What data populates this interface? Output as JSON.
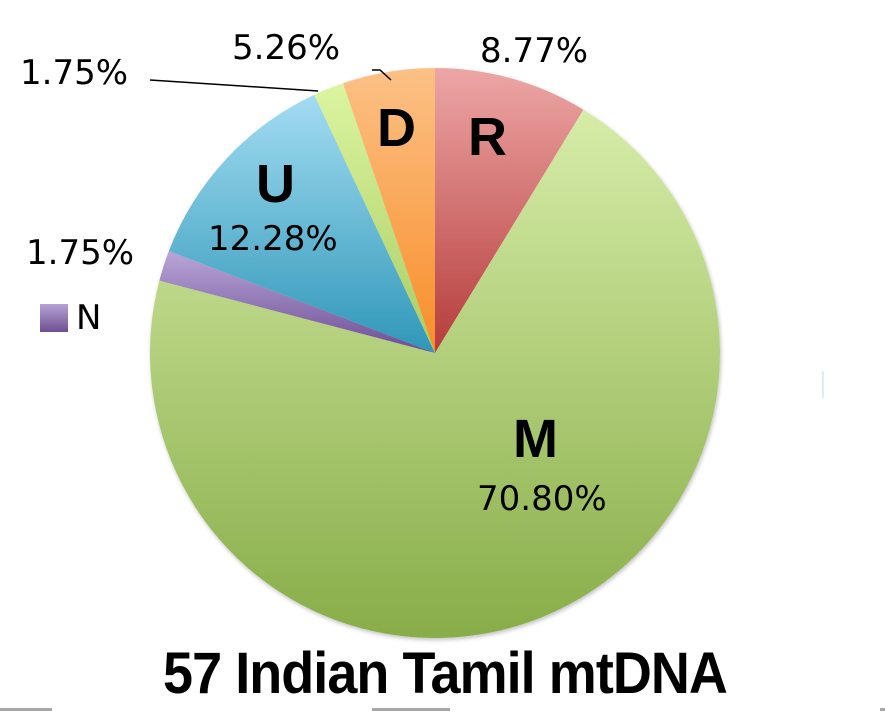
{
  "chart_data": {
    "type": "pie",
    "title": "57 Indian Tamil mtDNA",
    "start_angle_deg": 0,
    "direction": "clockwise",
    "slices": [
      {
        "category": "R",
        "value": 8.77,
        "label": "8.77%",
        "color": "#d9706e"
      },
      {
        "category": "M",
        "value": 70.8,
        "label": "70.80%",
        "color": "#a9cb72"
      },
      {
        "category": "N",
        "value": 1.75,
        "label": "1.75%",
        "color": "#9b84c0"
      },
      {
        "category": "U",
        "value": 12.28,
        "label": "12.28%",
        "color": "#5fb6d4"
      },
      {
        "category": "",
        "value": 1.75,
        "label": "1.75%",
        "color": "#c9e88c"
      },
      {
        "category": "D",
        "value": 5.26,
        "label": "5.26%",
        "color": "#fba652"
      }
    ],
    "legend": [
      {
        "label": "N",
        "color": "#8b6fb1"
      }
    ],
    "legend_position": "left"
  },
  "title": "57 Indian Tamil mtDNA",
  "labels": {
    "R_pct": "8.77%",
    "R": "R",
    "M_pct": "70.80%",
    "M": "M",
    "N_pct": "1.75%",
    "U_pct": "12.28%",
    "U": "U",
    "G_pct": "1.75%",
    "D_pct": "5.26%",
    "D": "D",
    "legend_N": "N"
  }
}
